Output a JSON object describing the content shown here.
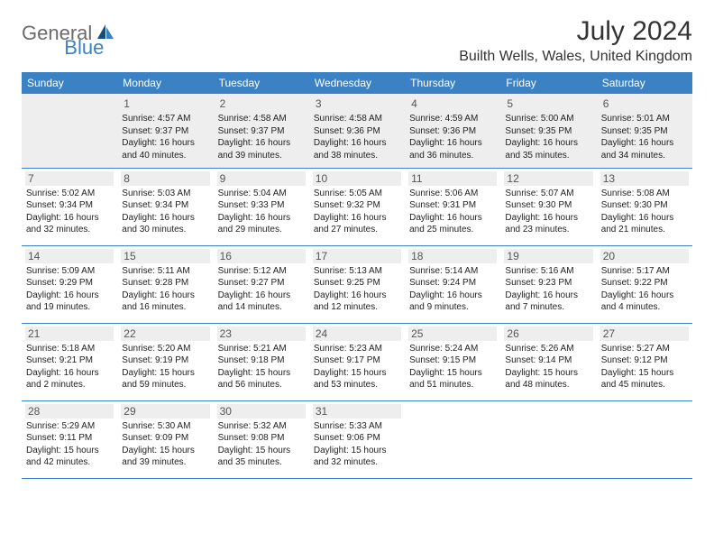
{
  "logo": {
    "text1": "General",
    "text2": "Blue"
  },
  "title": "July 2024",
  "location": "Builth Wells, Wales, United Kingdom",
  "colors": {
    "header_bg": "#3b82c4",
    "header_text": "#ffffff",
    "border": "#3b82c4",
    "daynum_bg": "#eeeeee",
    "logo_gray": "#6b6b6b",
    "logo_blue": "#3b82c4"
  },
  "dayNames": [
    "Sunday",
    "Monday",
    "Tuesday",
    "Wednesday",
    "Thursday",
    "Friday",
    "Saturday"
  ],
  "weeks": [
    [
      null,
      {
        "n": "1",
        "sr": "Sunrise: 4:57 AM",
        "ss": "Sunset: 9:37 PM",
        "dl": "Daylight: 16 hours and 40 minutes."
      },
      {
        "n": "2",
        "sr": "Sunrise: 4:58 AM",
        "ss": "Sunset: 9:37 PM",
        "dl": "Daylight: 16 hours and 39 minutes."
      },
      {
        "n": "3",
        "sr": "Sunrise: 4:58 AM",
        "ss": "Sunset: 9:36 PM",
        "dl": "Daylight: 16 hours and 38 minutes."
      },
      {
        "n": "4",
        "sr": "Sunrise: 4:59 AM",
        "ss": "Sunset: 9:36 PM",
        "dl": "Daylight: 16 hours and 36 minutes."
      },
      {
        "n": "5",
        "sr": "Sunrise: 5:00 AM",
        "ss": "Sunset: 9:35 PM",
        "dl": "Daylight: 16 hours and 35 minutes."
      },
      {
        "n": "6",
        "sr": "Sunrise: 5:01 AM",
        "ss": "Sunset: 9:35 PM",
        "dl": "Daylight: 16 hours and 34 minutes."
      }
    ],
    [
      {
        "n": "7",
        "sr": "Sunrise: 5:02 AM",
        "ss": "Sunset: 9:34 PM",
        "dl": "Daylight: 16 hours and 32 minutes."
      },
      {
        "n": "8",
        "sr": "Sunrise: 5:03 AM",
        "ss": "Sunset: 9:34 PM",
        "dl": "Daylight: 16 hours and 30 minutes."
      },
      {
        "n": "9",
        "sr": "Sunrise: 5:04 AM",
        "ss": "Sunset: 9:33 PM",
        "dl": "Daylight: 16 hours and 29 minutes."
      },
      {
        "n": "10",
        "sr": "Sunrise: 5:05 AM",
        "ss": "Sunset: 9:32 PM",
        "dl": "Daylight: 16 hours and 27 minutes."
      },
      {
        "n": "11",
        "sr": "Sunrise: 5:06 AM",
        "ss": "Sunset: 9:31 PM",
        "dl": "Daylight: 16 hours and 25 minutes."
      },
      {
        "n": "12",
        "sr": "Sunrise: 5:07 AM",
        "ss": "Sunset: 9:30 PM",
        "dl": "Daylight: 16 hours and 23 minutes."
      },
      {
        "n": "13",
        "sr": "Sunrise: 5:08 AM",
        "ss": "Sunset: 9:30 PM",
        "dl": "Daylight: 16 hours and 21 minutes."
      }
    ],
    [
      {
        "n": "14",
        "sr": "Sunrise: 5:09 AM",
        "ss": "Sunset: 9:29 PM",
        "dl": "Daylight: 16 hours and 19 minutes."
      },
      {
        "n": "15",
        "sr": "Sunrise: 5:11 AM",
        "ss": "Sunset: 9:28 PM",
        "dl": "Daylight: 16 hours and 16 minutes."
      },
      {
        "n": "16",
        "sr": "Sunrise: 5:12 AM",
        "ss": "Sunset: 9:27 PM",
        "dl": "Daylight: 16 hours and 14 minutes."
      },
      {
        "n": "17",
        "sr": "Sunrise: 5:13 AM",
        "ss": "Sunset: 9:25 PM",
        "dl": "Daylight: 16 hours and 12 minutes."
      },
      {
        "n": "18",
        "sr": "Sunrise: 5:14 AM",
        "ss": "Sunset: 9:24 PM",
        "dl": "Daylight: 16 hours and 9 minutes."
      },
      {
        "n": "19",
        "sr": "Sunrise: 5:16 AM",
        "ss": "Sunset: 9:23 PM",
        "dl": "Daylight: 16 hours and 7 minutes."
      },
      {
        "n": "20",
        "sr": "Sunrise: 5:17 AM",
        "ss": "Sunset: 9:22 PM",
        "dl": "Daylight: 16 hours and 4 minutes."
      }
    ],
    [
      {
        "n": "21",
        "sr": "Sunrise: 5:18 AM",
        "ss": "Sunset: 9:21 PM",
        "dl": "Daylight: 16 hours and 2 minutes."
      },
      {
        "n": "22",
        "sr": "Sunrise: 5:20 AM",
        "ss": "Sunset: 9:19 PM",
        "dl": "Daylight: 15 hours and 59 minutes."
      },
      {
        "n": "23",
        "sr": "Sunrise: 5:21 AM",
        "ss": "Sunset: 9:18 PM",
        "dl": "Daylight: 15 hours and 56 minutes."
      },
      {
        "n": "24",
        "sr": "Sunrise: 5:23 AM",
        "ss": "Sunset: 9:17 PM",
        "dl": "Daylight: 15 hours and 53 minutes."
      },
      {
        "n": "25",
        "sr": "Sunrise: 5:24 AM",
        "ss": "Sunset: 9:15 PM",
        "dl": "Daylight: 15 hours and 51 minutes."
      },
      {
        "n": "26",
        "sr": "Sunrise: 5:26 AM",
        "ss": "Sunset: 9:14 PM",
        "dl": "Daylight: 15 hours and 48 minutes."
      },
      {
        "n": "27",
        "sr": "Sunrise: 5:27 AM",
        "ss": "Sunset: 9:12 PM",
        "dl": "Daylight: 15 hours and 45 minutes."
      }
    ],
    [
      {
        "n": "28",
        "sr": "Sunrise: 5:29 AM",
        "ss": "Sunset: 9:11 PM",
        "dl": "Daylight: 15 hours and 42 minutes."
      },
      {
        "n": "29",
        "sr": "Sunrise: 5:30 AM",
        "ss": "Sunset: 9:09 PM",
        "dl": "Daylight: 15 hours and 39 minutes."
      },
      {
        "n": "30",
        "sr": "Sunrise: 5:32 AM",
        "ss": "Sunset: 9:08 PM",
        "dl": "Daylight: 15 hours and 35 minutes."
      },
      {
        "n": "31",
        "sr": "Sunrise: 5:33 AM",
        "ss": "Sunset: 9:06 PM",
        "dl": "Daylight: 15 hours and 32 minutes."
      },
      null,
      null,
      null
    ]
  ]
}
